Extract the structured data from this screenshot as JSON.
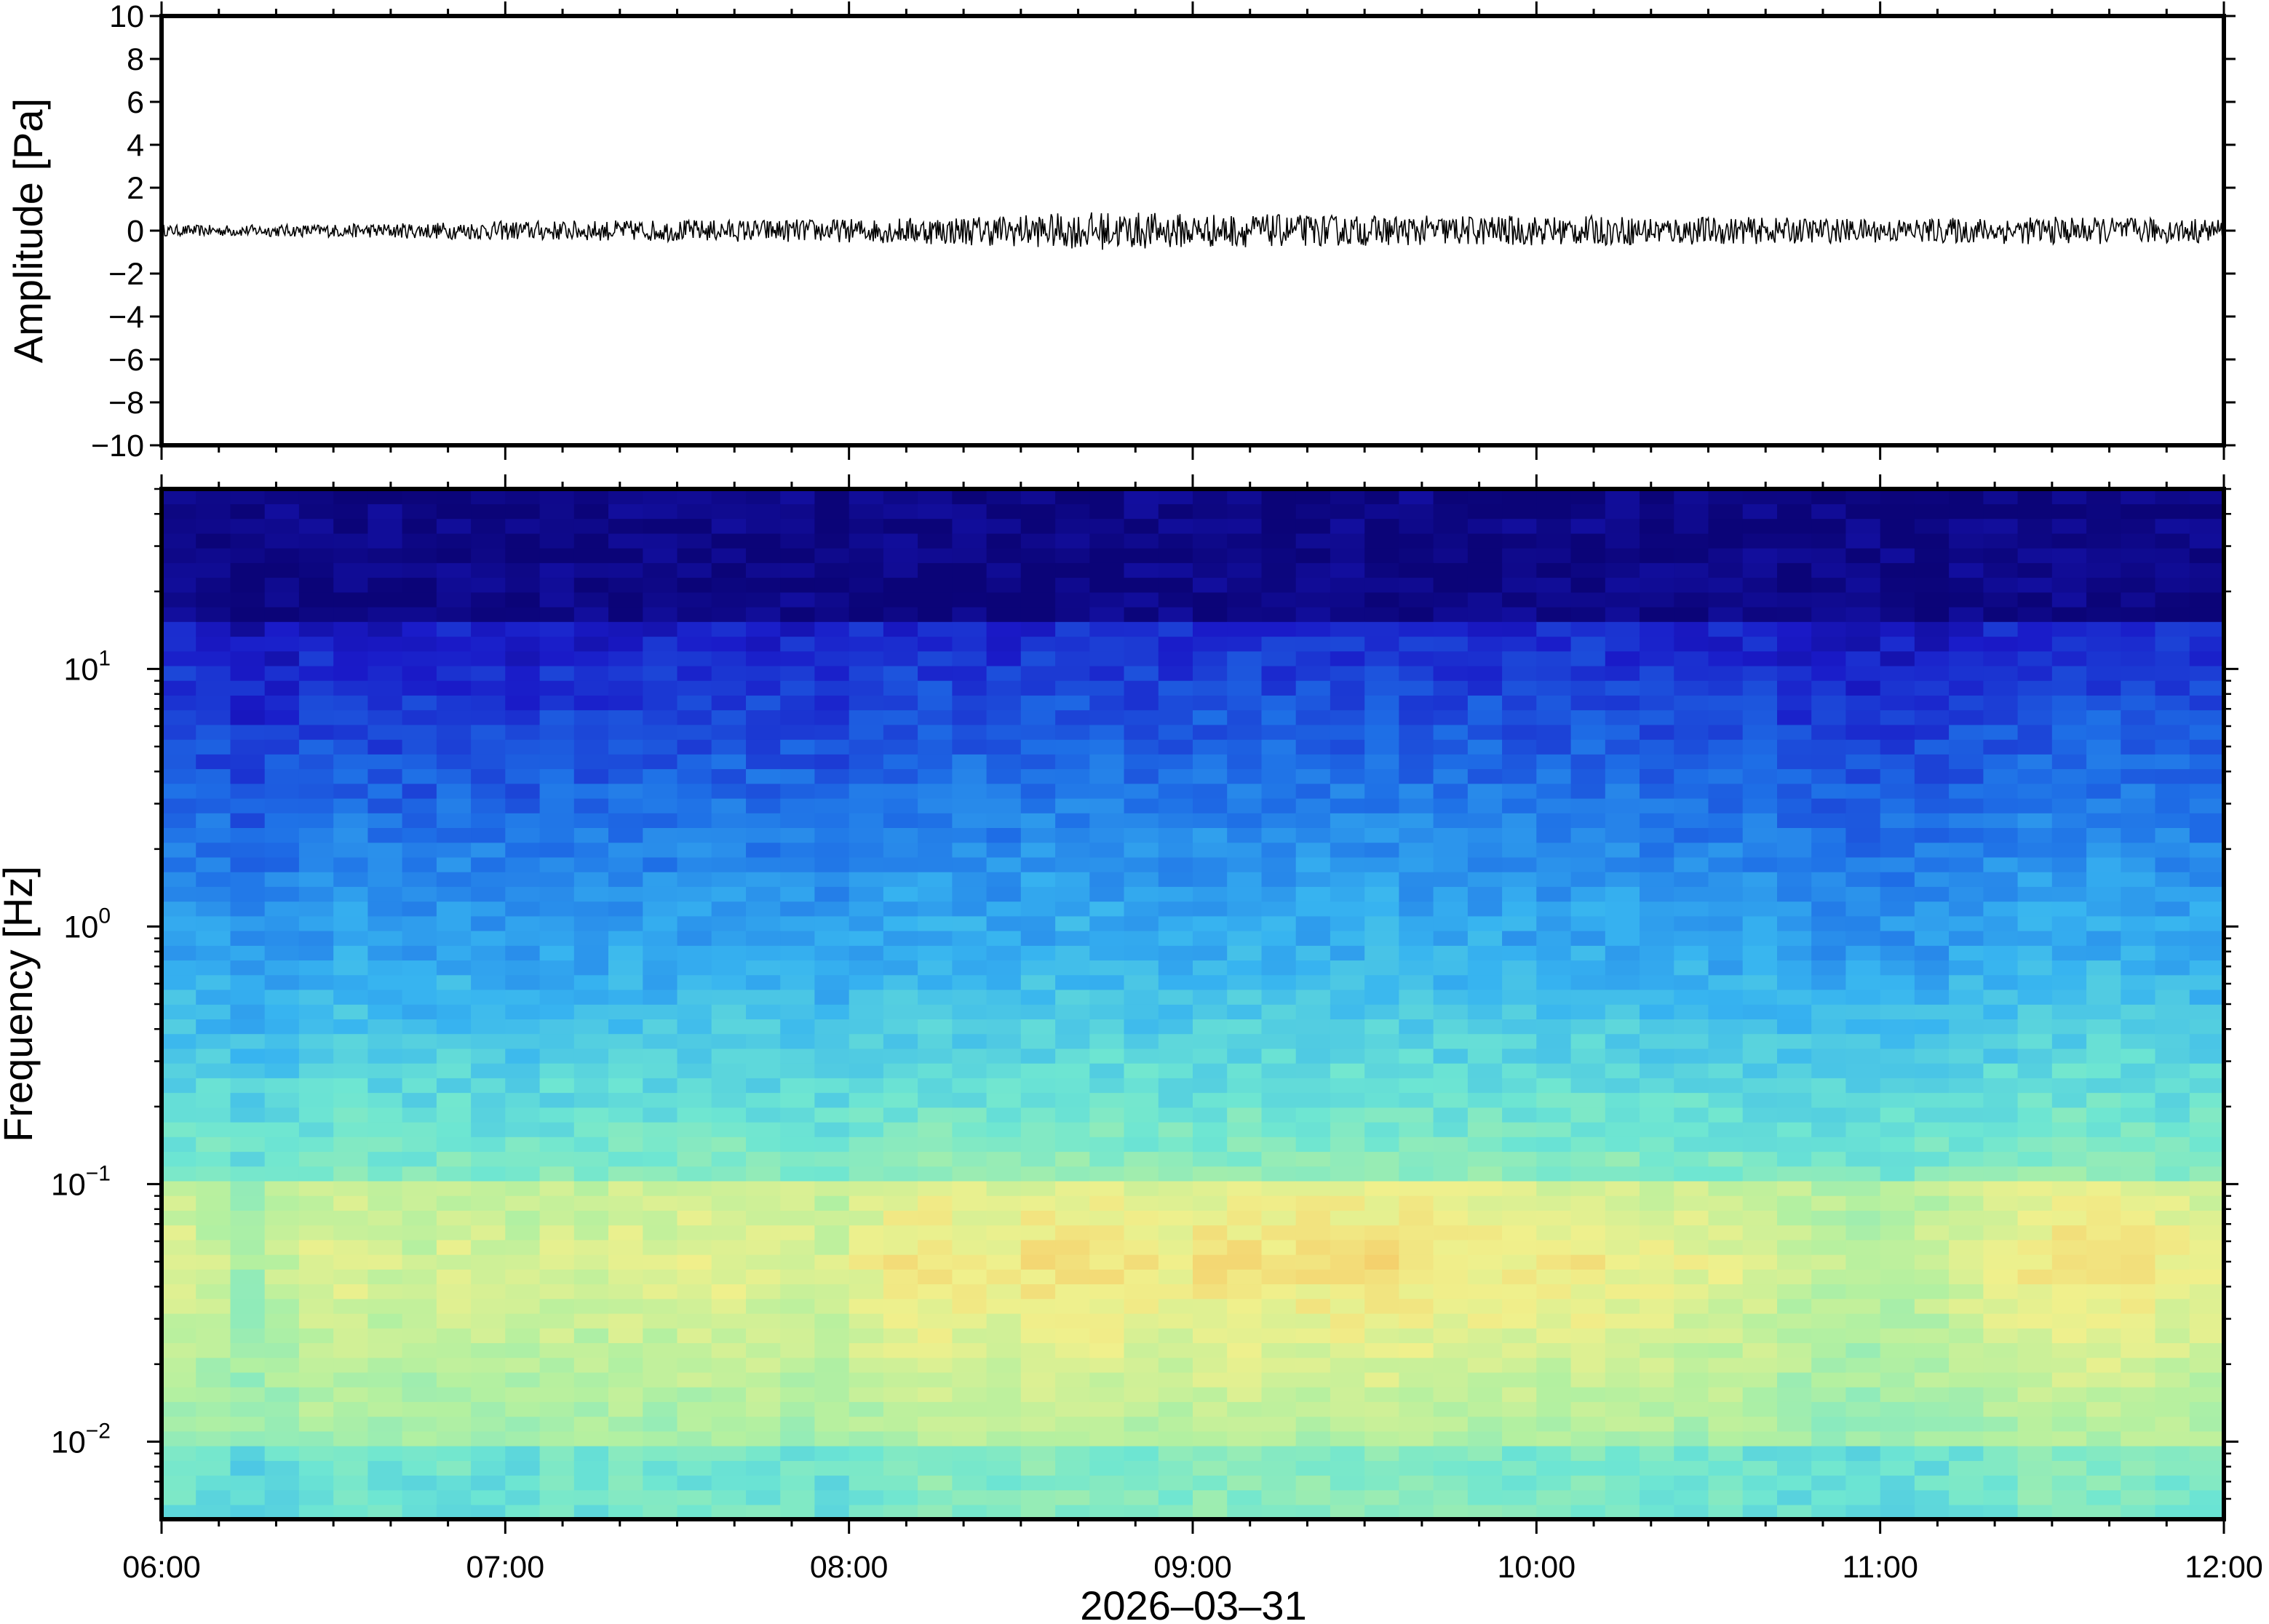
{
  "chart_data": [
    {
      "type": "line",
      "panel": "waveform",
      "title": "",
      "xlabel": "",
      "ylabel": "Amplitude [Pa]",
      "ylim": [
        -10,
        10
      ],
      "yticks": [
        10,
        8,
        6,
        4,
        2,
        0,
        -2,
        -4,
        -6,
        -8,
        -10
      ],
      "ytick_labels": [
        "10",
        "8",
        "6",
        "4",
        "2",
        "0",
        "−2",
        "−4",
        "−6",
        "−8",
        "−10"
      ],
      "xlim": [
        "06:00",
        "12:00"
      ],
      "series": [
        {
          "color": "#000000",
          "x": [
            "06:00",
            "06:30",
            "07:00",
            "07:30",
            "08:00",
            "08:30",
            "08:45",
            "09:00",
            "09:30",
            "10:00",
            "10:30",
            "11:00",
            "11:30",
            "12:00"
          ],
          "envelope": [
            0.25,
            0.3,
            0.45,
            0.5,
            0.55,
            0.75,
            0.9,
            0.8,
            0.7,
            0.7,
            0.65,
            0.55,
            0.65,
            0.55
          ],
          "values": [
            0,
            0,
            0,
            0,
            0,
            0,
            0,
            0,
            0,
            0,
            0,
            0,
            0,
            0
          ]
        }
      ],
      "grid": false
    },
    {
      "type": "heatmap",
      "panel": "spectrogram",
      "title": "",
      "xlabel": "2026–03–31",
      "ylabel": "Frequency [Hz]",
      "yscale": "log",
      "ylim": [
        0.005,
        50
      ],
      "yticks": [
        0.01,
        0.1,
        1,
        10
      ],
      "ytick_labels": [
        {
          "base": "10",
          "exp": "−2"
        },
        {
          "base": "10",
          "exp": "−1"
        },
        {
          "base": "10",
          "exp": "0"
        },
        {
          "base": "10",
          "exp": "1"
        }
      ],
      "x_tick_labels": [
        "06:00",
        "07:00",
        "08:00",
        "09:00",
        "10:00",
        "11:00",
        "12:00"
      ],
      "colormap": "jet-like (dark blue low power → cyan → yellow → orange high power)",
      "colors": [
        "#0b0478",
        "#1a1ac8",
        "#1e6ee6",
        "#37b4f0",
        "#6ee6d2",
        "#b4f0a0",
        "#f0f08c",
        "#f5c864",
        "#f08c50"
      ],
      "time_columns_hours": [
        6.0,
        6.1,
        6.2,
        6.3,
        6.4,
        6.5,
        6.6,
        6.7,
        6.8,
        6.9,
        7.0,
        7.1,
        7.2,
        7.3,
        7.4,
        7.5,
        7.6,
        7.7,
        7.8,
        7.9,
        8.0,
        8.1,
        8.2,
        8.3,
        8.4,
        8.5,
        8.6,
        8.7,
        8.8,
        8.9,
        9.0,
        9.1,
        9.2,
        9.3,
        9.4,
        9.5,
        9.6,
        9.7,
        9.8,
        9.9,
        10.0,
        10.1,
        10.2,
        10.3,
        10.4,
        10.5,
        10.6,
        10.7,
        10.8,
        10.9,
        11.0,
        11.1,
        11.2,
        11.3,
        11.4,
        11.5,
        11.6,
        11.7,
        11.8,
        11.9
      ],
      "activity_by_column": [
        0.45,
        0.35,
        0.15,
        0.3,
        0.45,
        0.5,
        0.4,
        0.35,
        0.45,
        0.4,
        0.35,
        0.45,
        0.4,
        0.5,
        0.45,
        0.5,
        0.55,
        0.5,
        0.45,
        0.4,
        0.55,
        0.65,
        0.7,
        0.65,
        0.6,
        0.7,
        0.75,
        0.7,
        0.65,
        0.6,
        0.7,
        0.72,
        0.68,
        0.7,
        0.72,
        0.74,
        0.7,
        0.66,
        0.65,
        0.6,
        0.6,
        0.65,
        0.6,
        0.55,
        0.5,
        0.5,
        0.45,
        0.35,
        0.3,
        0.25,
        0.3,
        0.35,
        0.45,
        0.55,
        0.65,
        0.7,
        0.7,
        0.65,
        0.6,
        0.55
      ],
      "noise_floor_top_hz": 15,
      "peak_band_hz": [
        0.03,
        0.1
      ],
      "grid": false
    }
  ]
}
